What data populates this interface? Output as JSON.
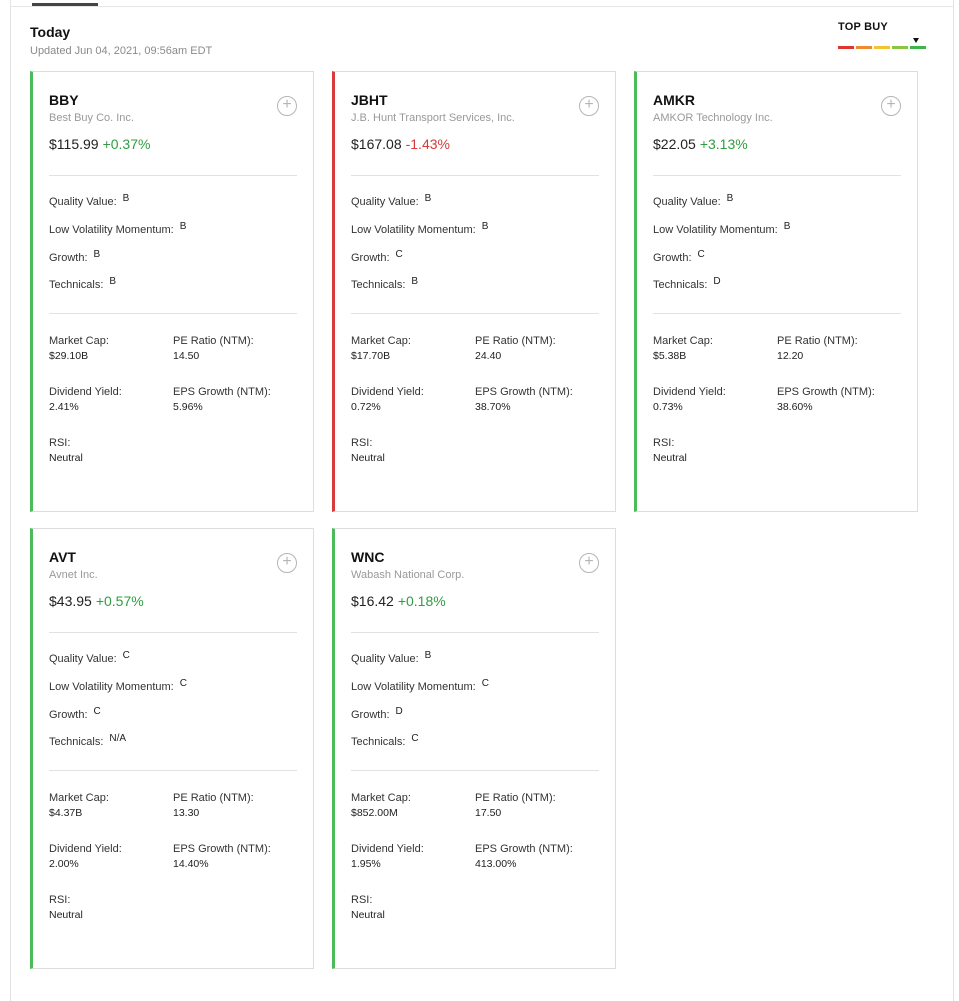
{
  "header": {
    "title": "Today",
    "updated": "Updated Jun 04, 2021, 09:56am EDT",
    "rating_label": "TOP BUY",
    "rating_colors": [
      "#e0342f",
      "#ef8a2e",
      "#f4c430",
      "#8ac540",
      "#3cb64a"
    ]
  },
  "labels": {
    "quality_value": "Quality Value:",
    "low_vol_momentum": "Low Volatility Momentum:",
    "growth": "Growth:",
    "technicals": "Technicals:",
    "market_cap": "Market Cap:",
    "pe_ratio": "PE Ratio (NTM):",
    "dividend_yield": "Dividend Yield:",
    "eps_growth": "EPS Growth (NTM):",
    "rsi": "RSI:",
    "add_icon": "+"
  },
  "cards": [
    {
      "ticker": "BBY",
      "company": "Best Buy Co. Inc.",
      "price": "$115.99",
      "change": "+0.37%",
      "direction": "up",
      "quality_value": "B",
      "low_vol_momentum": "B",
      "growth": "B",
      "technicals": "B",
      "market_cap": "$29.10B",
      "pe_ratio": "14.50",
      "dividend_yield": "2.41%",
      "eps_growth": "5.96%",
      "rsi": "Neutral"
    },
    {
      "ticker": "JBHT",
      "company": "J.B. Hunt Transport Services, Inc.",
      "price": "$167.08",
      "change": "-1.43%",
      "direction": "down",
      "quality_value": "B",
      "low_vol_momentum": "B",
      "growth": "C",
      "technicals": "B",
      "market_cap": "$17.70B",
      "pe_ratio": "24.40",
      "dividend_yield": "0.72%",
      "eps_growth": "38.70%",
      "rsi": "Neutral"
    },
    {
      "ticker": "AMKR",
      "company": "AMKOR Technology Inc.",
      "price": "$22.05",
      "change": "+3.13%",
      "direction": "up",
      "quality_value": "B",
      "low_vol_momentum": "B",
      "growth": "C",
      "technicals": "D",
      "market_cap": "$5.38B",
      "pe_ratio": "12.20",
      "dividend_yield": "0.73%",
      "eps_growth": "38.60%",
      "rsi": "Neutral"
    },
    {
      "ticker": "AVT",
      "company": "Avnet Inc.",
      "price": "$43.95",
      "change": "+0.57%",
      "direction": "up",
      "quality_value": "C",
      "low_vol_momentum": "C",
      "growth": "C",
      "technicals": "N/A",
      "market_cap": "$4.37B",
      "pe_ratio": "13.30",
      "dividend_yield": "2.00%",
      "eps_growth": "14.40%",
      "rsi": "Neutral"
    },
    {
      "ticker": "WNC",
      "company": "Wabash National Corp.",
      "price": "$16.42",
      "change": "+0.18%",
      "direction": "up",
      "quality_value": "B",
      "low_vol_momentum": "C",
      "growth": "D",
      "technicals": "C",
      "market_cap": "$852.00M",
      "pe_ratio": "17.50",
      "dividend_yield": "1.95%",
      "eps_growth": "413.00%",
      "rsi": "Neutral"
    }
  ]
}
